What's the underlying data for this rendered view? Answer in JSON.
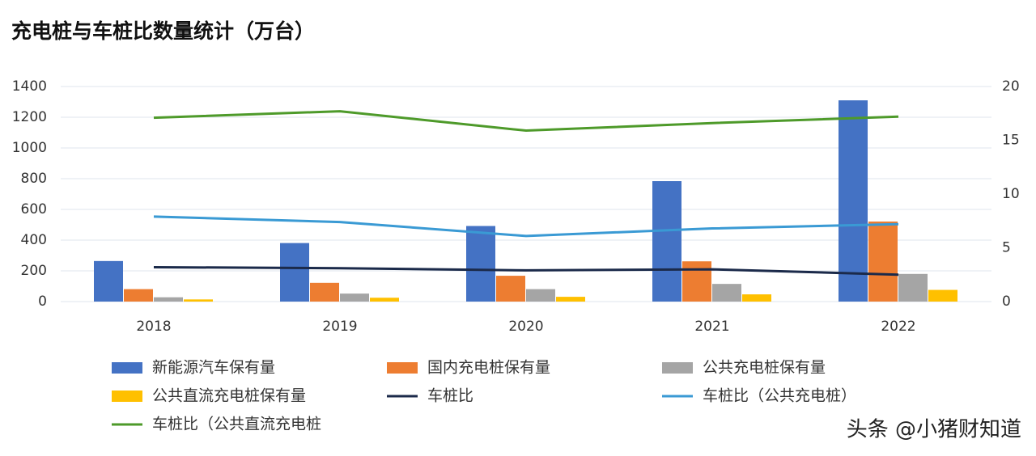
{
  "chart_data": {
    "type": "bar",
    "title": "充电桩与车桩比数量统计（万台）",
    "categories": [
      "2018",
      "2019",
      "2020",
      "2021",
      "2022"
    ],
    "series": [
      {
        "name": "新能源汽车保有量",
        "color": "#4472c4",
        "values": [
          264,
          381,
          492,
          784,
          1310
        ]
      },
      {
        "name": "国内充电桩保有量",
        "color": "#ed7d31",
        "values": [
          81,
          122,
          168,
          262,
          521
        ]
      },
      {
        "name": "公共充电桩保有量",
        "color": "#a5a5a5",
        "values": [
          28,
          52,
          81,
          115,
          180
        ]
      },
      {
        "name": "公共直流充电桩保有量",
        "color": "#ffc000",
        "values": [
          14,
          25,
          31,
          47,
          76
        ]
      },
      {
        "name": "车桩比",
        "color": "#1b2a4a",
        "type": "line",
        "axis": "y2",
        "values": [
          3.2,
          3.1,
          2.9,
          3.0,
          2.5
        ]
      },
      {
        "name": "车桩比（公共充电桩）",
        "color": "#3a9ad4",
        "type": "line",
        "axis": "y2",
        "values": [
          7.9,
          7.4,
          6.1,
          6.8,
          7.2
        ]
      },
      {
        "name": "车桩比（公共直流充电桩",
        "color": "#4e9a2a",
        "type": "line",
        "axis": "y2",
        "values": [
          17.1,
          17.7,
          15.9,
          16.6,
          17.2
        ]
      }
    ],
    "ylim": [
      0,
      1400
    ],
    "yticks": [
      0,
      200,
      400,
      600,
      800,
      1000,
      1200,
      1400
    ],
    "y2lim": [
      0,
      20
    ],
    "y2ticks": [
      0,
      5,
      10,
      15,
      20
    ],
    "grid": true,
    "legend": "bottom",
    "watermark": "头条 @小猪财知道"
  }
}
